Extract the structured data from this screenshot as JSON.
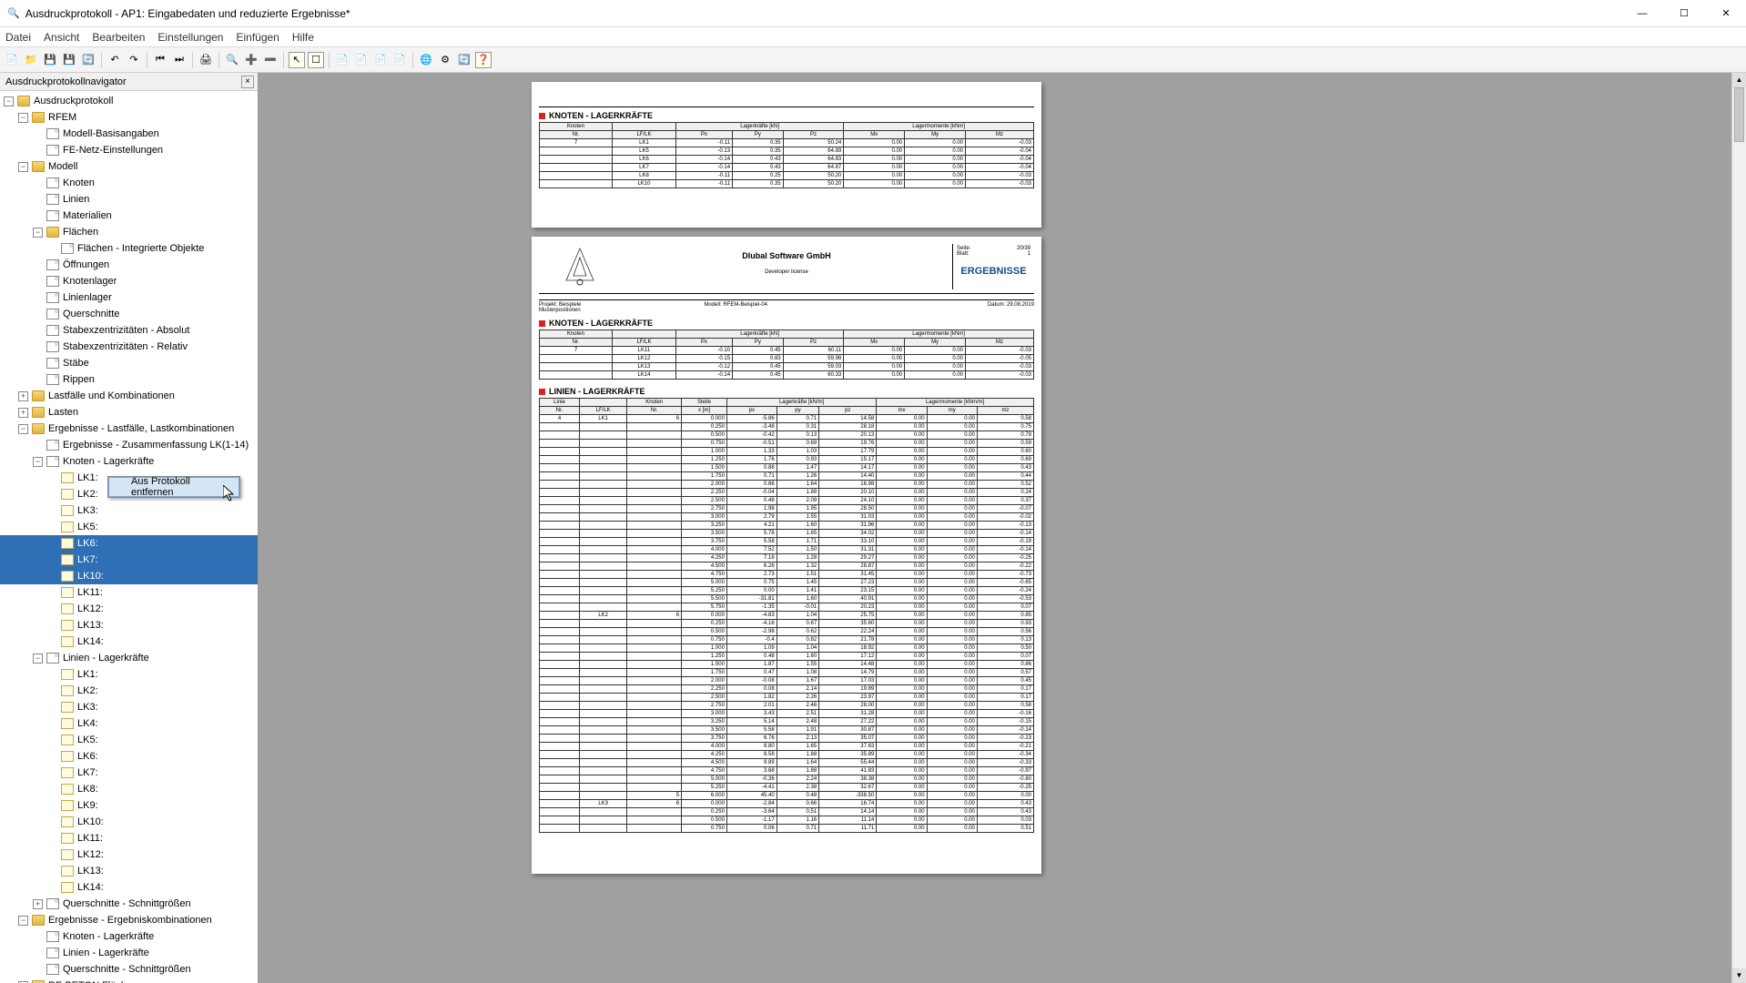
{
  "window": {
    "title": "Ausdruckprotokoll - AP1: Eingabedaten und reduzierte Ergebnisse*"
  },
  "menu": {
    "items": [
      "Datei",
      "Ansicht",
      "Bearbeiten",
      "Einstellungen",
      "Einfügen",
      "Hilfe"
    ]
  },
  "nav": {
    "title": "Ausdruckprotokollnavigator",
    "tree": [
      {
        "lvl": 0,
        "exp": "-",
        "icon": "folder",
        "label": "Ausdruckprotokoll"
      },
      {
        "lvl": 1,
        "exp": "-",
        "icon": "folder",
        "label": "RFEM"
      },
      {
        "lvl": 2,
        "exp": "",
        "icon": "doc",
        "label": "Modell-Basisangaben"
      },
      {
        "lvl": 2,
        "exp": "",
        "icon": "doc",
        "label": "FE-Netz-Einstellungen"
      },
      {
        "lvl": 1,
        "exp": "-",
        "icon": "folder",
        "label": "Modell"
      },
      {
        "lvl": 2,
        "exp": "",
        "icon": "doc",
        "label": "Knoten"
      },
      {
        "lvl": 2,
        "exp": "",
        "icon": "doc",
        "label": "Linien"
      },
      {
        "lvl": 2,
        "exp": "",
        "icon": "doc",
        "label": "Materialien"
      },
      {
        "lvl": 2,
        "exp": "-",
        "icon": "folder",
        "label": "Flächen"
      },
      {
        "lvl": 3,
        "exp": "",
        "icon": "doc",
        "label": "Flächen - Integrierte Objekte"
      },
      {
        "lvl": 2,
        "exp": "",
        "icon": "doc",
        "label": "Öffnungen"
      },
      {
        "lvl": 2,
        "exp": "",
        "icon": "doc",
        "label": "Knotenlager"
      },
      {
        "lvl": 2,
        "exp": "",
        "icon": "doc",
        "label": "Linienlager"
      },
      {
        "lvl": 2,
        "exp": "",
        "icon": "doc",
        "label": "Querschnitte"
      },
      {
        "lvl": 2,
        "exp": "",
        "icon": "doc",
        "label": "Stabexzentrizitäten - Absolut"
      },
      {
        "lvl": 2,
        "exp": "",
        "icon": "doc",
        "label": "Stabexzentrizitäten - Relativ"
      },
      {
        "lvl": 2,
        "exp": "",
        "icon": "doc",
        "label": "Stäbe"
      },
      {
        "lvl": 2,
        "exp": "",
        "icon": "doc",
        "label": "Rippen"
      },
      {
        "lvl": 1,
        "exp": "+",
        "icon": "folder",
        "label": "Lastfälle und Kombinationen"
      },
      {
        "lvl": 1,
        "exp": "+",
        "icon": "folder",
        "label": "Lasten"
      },
      {
        "lvl": 1,
        "exp": "-",
        "icon": "folder",
        "label": "Ergebnisse - Lastfälle, Lastkombinationen"
      },
      {
        "lvl": 2,
        "exp": "",
        "icon": "doc",
        "label": "Ergebnisse - Zusammenfassung LK(1-14)"
      },
      {
        "lvl": 2,
        "exp": "-",
        "icon": "doc",
        "label": "Knoten - Lagerkräfte"
      },
      {
        "lvl": 3,
        "exp": "",
        "icon": "docy",
        "label": "LK1:"
      },
      {
        "lvl": 3,
        "exp": "",
        "icon": "docy",
        "label": "LK2:"
      },
      {
        "lvl": 3,
        "exp": "",
        "icon": "docy",
        "label": "LK3:"
      },
      {
        "lvl": 3,
        "exp": "",
        "icon": "docy",
        "label": "LK5:"
      },
      {
        "lvl": 3,
        "exp": "",
        "icon": "docy",
        "label": "LK6:",
        "sel": true
      },
      {
        "lvl": 3,
        "exp": "",
        "icon": "docy",
        "label": "LK7:",
        "sel": true
      },
      {
        "lvl": 3,
        "exp": "",
        "icon": "docy",
        "label": "LK10:",
        "sel": true
      },
      {
        "lvl": 3,
        "exp": "",
        "icon": "docy",
        "label": "LK11:"
      },
      {
        "lvl": 3,
        "exp": "",
        "icon": "docy",
        "label": "LK12:"
      },
      {
        "lvl": 3,
        "exp": "",
        "icon": "docy",
        "label": "LK13:"
      },
      {
        "lvl": 3,
        "exp": "",
        "icon": "docy",
        "label": "LK14:"
      },
      {
        "lvl": 2,
        "exp": "-",
        "icon": "doc",
        "label": "Linien - Lagerkräfte"
      },
      {
        "lvl": 3,
        "exp": "",
        "icon": "docy",
        "label": "LK1:"
      },
      {
        "lvl": 3,
        "exp": "",
        "icon": "docy",
        "label": "LK2:"
      },
      {
        "lvl": 3,
        "exp": "",
        "icon": "docy",
        "label": "LK3:"
      },
      {
        "lvl": 3,
        "exp": "",
        "icon": "docy",
        "label": "LK4:"
      },
      {
        "lvl": 3,
        "exp": "",
        "icon": "docy",
        "label": "LK5:"
      },
      {
        "lvl": 3,
        "exp": "",
        "icon": "docy",
        "label": "LK6:"
      },
      {
        "lvl": 3,
        "exp": "",
        "icon": "docy",
        "label": "LK7:"
      },
      {
        "lvl": 3,
        "exp": "",
        "icon": "docy",
        "label": "LK8:"
      },
      {
        "lvl": 3,
        "exp": "",
        "icon": "docy",
        "label": "LK9:"
      },
      {
        "lvl": 3,
        "exp": "",
        "icon": "docy",
        "label": "LK10:"
      },
      {
        "lvl": 3,
        "exp": "",
        "icon": "docy",
        "label": "LK11:"
      },
      {
        "lvl": 3,
        "exp": "",
        "icon": "docy",
        "label": "LK12:"
      },
      {
        "lvl": 3,
        "exp": "",
        "icon": "docy",
        "label": "LK13:"
      },
      {
        "lvl": 3,
        "exp": "",
        "icon": "docy",
        "label": "LK14:"
      },
      {
        "lvl": 2,
        "exp": "+",
        "icon": "doc",
        "label": "Querschnitte - Schnittgrößen"
      },
      {
        "lvl": 1,
        "exp": "-",
        "icon": "folder",
        "label": "Ergebnisse - Ergebniskombinationen"
      },
      {
        "lvl": 2,
        "exp": "",
        "icon": "doc",
        "label": "Knoten - Lagerkräfte"
      },
      {
        "lvl": 2,
        "exp": "",
        "icon": "doc",
        "label": "Linien - Lagerkräfte"
      },
      {
        "lvl": 2,
        "exp": "",
        "icon": "doc",
        "label": "Querschnitte - Schnittgrößen"
      },
      {
        "lvl": 1,
        "exp": "+",
        "icon": "folder",
        "label": "RF-BETON Flächen"
      }
    ]
  },
  "ctxmenu": {
    "item": "Aus Protokoll entfernen"
  },
  "page1": {
    "section": "KNOTEN - LAGERKRÄFTE",
    "headers1": [
      "Knoten",
      "",
      "Lagerkräfte [kN]",
      "",
      "",
      "Lagermomente [kNm]",
      "",
      ""
    ],
    "headers2": [
      "Nr.",
      "LF/LK",
      "Px",
      "Py",
      "Pz",
      "Mx",
      "My",
      "Mz"
    ],
    "rows": [
      [
        "7",
        "LK1",
        "-0.11",
        "0.35",
        "50.24",
        "0.00",
        "0.00",
        "-0.03"
      ],
      [
        "",
        "LK5",
        "-0.13",
        "0.35",
        "64.89",
        "0.00",
        "0.00",
        "-0.04"
      ],
      [
        "",
        "LK6",
        "-0.14",
        "0.43",
        "64.83",
        "0.00",
        "0.00",
        "-0.04"
      ],
      [
        "",
        "LK7",
        "-0.14",
        "0.43",
        "64.87",
        "0.00",
        "0.00",
        "-0.04"
      ],
      [
        "",
        "LK8",
        "-0.11",
        "0.25",
        "50.20",
        "0.00",
        "0.00",
        "-0.03"
      ],
      [
        "",
        "LK10",
        "-0.11",
        "0.35",
        "50.20",
        "0.00",
        "0.00",
        "-0.03"
      ]
    ]
  },
  "page2": {
    "header": {
      "company": "Dlubal Software GmbH",
      "license": "Developer license",
      "seite_label": "Seite:",
      "seite_val": "20/39",
      "blatt_label": "Blatt:",
      "blatt_val": "1",
      "ergebnisse": "ERGEBNISSE",
      "projekt_label": "Projekt:",
      "projekt_val": "Beispiele",
      "projekt_sub": "Musterpositionen",
      "modell_label": "Modell:",
      "modell_val": "RFEM-Beispiel-04",
      "datum_label": "Datum:",
      "datum_val": "29.08.2019"
    },
    "section1": "KNOTEN - LAGERKRÄFTE",
    "t1_headers1": [
      "Knoten",
      "",
      "Lagerkräfte [kN]",
      "",
      "",
      "Lagermomente [kNm]",
      "",
      ""
    ],
    "t1_headers2": [
      "Nr.",
      "LF/LK",
      "Px",
      "Py",
      "Pz",
      "Mx",
      "My",
      "Mz"
    ],
    "t1_rows": [
      [
        "7",
        "LK11",
        "-0.10",
        "0.45",
        "60.11",
        "0.00",
        "0.00",
        "-0.03"
      ],
      [
        "",
        "LK12",
        "-0.15",
        "0.83",
        "59.98",
        "0.00",
        "0.00",
        "-0.05"
      ],
      [
        "",
        "LK13",
        "-0.12",
        "0.45",
        "59.03",
        "0.00",
        "0.00",
        "-0.03"
      ],
      [
        "",
        "LK14",
        "-0.14",
        "0.45",
        "60.33",
        "0.00",
        "0.00",
        "-0.03"
      ]
    ],
    "section2": "LINIEN - LAGERKRÄFTE",
    "t2_headers1": [
      "Linie",
      "",
      "Knoten",
      "Stelle",
      "",
      "Lagerkräfte [kN/m]",
      "",
      "",
      "Lagermomente [kNm/m]",
      "",
      ""
    ],
    "t2_headers2": [
      "Nr.",
      "LF/LK",
      "Nr.",
      "x [m]",
      "px",
      "py",
      "pz",
      "mx",
      "my",
      "mz"
    ],
    "t2_rows": [
      [
        "4",
        "LK1",
        "6",
        "0.000",
        "-5.86",
        "0.71",
        "14.58",
        "0.00",
        "0.00",
        "0.58"
      ],
      [
        "",
        "",
        "",
        "0.250",
        "-3.48",
        "0.31",
        "28.18",
        "0.00",
        "0.00",
        "0.75"
      ],
      [
        "",
        "",
        "",
        "0.500",
        "-0.42",
        "0.13",
        "20.13",
        "0.00",
        "0.00",
        "0.79"
      ],
      [
        "",
        "",
        "",
        "0.750",
        "-0.51",
        "0.69",
        "19.76",
        "0.00",
        "0.00",
        "0.59"
      ],
      [
        "",
        "",
        "",
        "1.000",
        "1.33",
        "1.03",
        "17.79",
        "0.00",
        "0.00",
        "0.60"
      ],
      [
        "",
        "",
        "",
        "1.250",
        "1.76",
        "0.93",
        "15.17",
        "0.00",
        "0.00",
        "0.69"
      ],
      [
        "",
        "",
        "",
        "1.500",
        "0.88",
        "1.47",
        "14.17",
        "0.00",
        "0.00",
        "0.43"
      ],
      [
        "",
        "",
        "",
        "1.750",
        "0.71",
        "1.26",
        "14.40",
        "0.00",
        "0.00",
        "0.44"
      ],
      [
        "",
        "",
        "",
        "2.000",
        "0.66",
        "1.64",
        "16.98",
        "0.00",
        "0.00",
        "0.52"
      ],
      [
        "",
        "",
        "",
        "2.250",
        "-0.04",
        "1.89",
        "20.10",
        "0.00",
        "0.00",
        "0.24"
      ],
      [
        "",
        "",
        "",
        "2.500",
        "0.48",
        "2.09",
        "24.10",
        "0.00",
        "0.00",
        "0.37"
      ],
      [
        "",
        "",
        "",
        "2.750",
        "1.98",
        "1.95",
        "28.50",
        "0.00",
        "0.00",
        "-0.07"
      ],
      [
        "",
        "",
        "",
        "3.000",
        "2.79",
        "1.55",
        "31.03",
        "0.00",
        "0.00",
        "-0.02"
      ],
      [
        "",
        "",
        "",
        "3.250",
        "4.21",
        "1.60",
        "31.96",
        "0.00",
        "0.00",
        "-0.13"
      ],
      [
        "",
        "",
        "",
        "3.500",
        "5.78",
        "1.65",
        "34.02",
        "0.00",
        "0.00",
        "-0.14"
      ],
      [
        "",
        "",
        "",
        "3.750",
        "5.58",
        "1.71",
        "33.10",
        "0.00",
        "0.00",
        "-0.19"
      ],
      [
        "",
        "",
        "",
        "4.000",
        "7.52",
        "1.50",
        "31.31",
        "0.00",
        "0.00",
        "-0.14"
      ],
      [
        "",
        "",
        "",
        "4.250",
        "7.18",
        "1.28",
        "29.27",
        "0.00",
        "0.00",
        "-0.25"
      ],
      [
        "",
        "",
        "",
        "4.500",
        "6.26",
        "1.32",
        "28.87",
        "0.00",
        "0.00",
        "-0.22"
      ],
      [
        "",
        "",
        "",
        "4.750",
        "2.73",
        "1.51",
        "31.45",
        "0.00",
        "0.00",
        "-0.73"
      ],
      [
        "",
        "",
        "",
        "5.000",
        "0.75",
        "1.45",
        "27.23",
        "0.00",
        "0.00",
        "-0.65"
      ],
      [
        "",
        "",
        "",
        "5.250",
        "0.00",
        "1.41",
        "23.15",
        "0.00",
        "0.00",
        "-0.24"
      ],
      [
        "",
        "",
        "",
        "5.500",
        "-31.81",
        "1.60",
        "40.91",
        "0.00",
        "0.00",
        "-0.53"
      ],
      [
        "",
        "",
        "",
        "5.750",
        "-1.35",
        "-0.01",
        "20.23",
        "0.00",
        "0.00",
        "0.07"
      ],
      [
        "",
        "LK2",
        "6",
        "0.000",
        "-4.83",
        "1.04",
        "25.75",
        "0.00",
        "0.00",
        "0.85"
      ],
      [
        "",
        "",
        "",
        "0.250",
        "-4.16",
        "0.67",
        "35.60",
        "0.00",
        "0.00",
        "0.93"
      ],
      [
        "",
        "",
        "",
        "0.500",
        "-2.98",
        "0.62",
        "22.24",
        "0.00",
        "0.00",
        "0.56"
      ],
      [
        "",
        "",
        "",
        "0.750",
        "-0.4",
        "0.82",
        "21.78",
        "0.00",
        "0.00",
        "0.13"
      ],
      [
        "",
        "",
        "",
        "1.000",
        "1.09",
        "1.04",
        "18.92",
        "0.00",
        "0.00",
        "0.50"
      ],
      [
        "",
        "",
        "",
        "1.250",
        "0.48",
        "1.60",
        "17.12",
        "0.00",
        "0.00",
        "0.07"
      ],
      [
        "",
        "",
        "",
        "1.500",
        "1.87",
        "1.55",
        "14.48",
        "0.00",
        "0.00",
        "0.86"
      ],
      [
        "",
        "",
        "",
        "1.750",
        "0.47",
        "1.08",
        "14.79",
        "0.00",
        "0.00",
        "0.57"
      ],
      [
        "",
        "",
        "",
        "2.000",
        "-0.08",
        "1.67",
        "17.03",
        "0.00",
        "0.00",
        "0.45"
      ],
      [
        "",
        "",
        "",
        "2.250",
        "0.08",
        "2.14",
        "19.89",
        "0.00",
        "0.00",
        "0.17"
      ],
      [
        "",
        "",
        "",
        "2.500",
        "1.82",
        "2.26",
        "23.97",
        "0.00",
        "0.00",
        "0.17"
      ],
      [
        "",
        "",
        "",
        "2.750",
        "2.01",
        "2.46",
        "28.00",
        "0.00",
        "0.00",
        "0.58"
      ],
      [
        "",
        "",
        "",
        "3.000",
        "3.43",
        "2.51",
        "31.28",
        "0.00",
        "0.00",
        "-0.16"
      ],
      [
        "",
        "",
        "",
        "3.250",
        "5.14",
        "2.48",
        "27.22",
        "0.00",
        "0.00",
        "-0.15"
      ],
      [
        "",
        "",
        "",
        "3.500",
        "5.58",
        "1.91",
        "30.87",
        "0.00",
        "0.00",
        "-0.14"
      ],
      [
        "",
        "",
        "",
        "3.750",
        "6.76",
        "2.13",
        "35.07",
        "0.00",
        "0.00",
        "-0.23"
      ],
      [
        "",
        "",
        "",
        "4.000",
        "8.80",
        "1.65",
        "37.63",
        "0.00",
        "0.00",
        "-0.21"
      ],
      [
        "",
        "",
        "",
        "4.250",
        "8.58",
        "1.88",
        "35.89",
        "0.00",
        "0.00",
        "-0.34"
      ],
      [
        "",
        "",
        "",
        "4.500",
        "9.89",
        "1.64",
        "55.44",
        "0.00",
        "0.00",
        "-0.33"
      ],
      [
        "",
        "",
        "",
        "4.750",
        "3.68",
        "1.88",
        "41.83",
        "0.00",
        "0.00",
        "-0.97"
      ],
      [
        "",
        "",
        "",
        "5.000",
        "-0.36",
        "2.24",
        "38.38",
        "0.00",
        "0.00",
        "-0.80"
      ],
      [
        "",
        "",
        "",
        "5.250",
        "-4.41",
        "2.38",
        "32.67",
        "0.00",
        "0.00",
        "-0.25"
      ],
      [
        "",
        "",
        "5",
        "6.000",
        "45.40",
        "0.48",
        "-338.50",
        "0.00",
        "0.00",
        "0.00"
      ],
      [
        "",
        "LK3",
        "6",
        "0.000",
        "-2.84",
        "0.66",
        "16.74",
        "0.00",
        "0.00",
        "0.43"
      ],
      [
        "",
        "",
        "",
        "0.250",
        "-3.64",
        "0.51",
        "14.14",
        "0.00",
        "0.00",
        "0.43"
      ],
      [
        "",
        "",
        "",
        "0.500",
        "-1.17",
        "1.16",
        "11.14",
        "0.00",
        "0.00",
        "0.03"
      ],
      [
        "",
        "",
        "",
        "0.750",
        "0.06",
        "0.71",
        "11.71",
        "0.00",
        "0.00",
        "0.51"
      ]
    ]
  },
  "colors": {
    "selection": "#2f6fb5",
    "ctx_bg": "#d6e5f5",
    "red": "#d22",
    "link": "#1a4a8a"
  }
}
